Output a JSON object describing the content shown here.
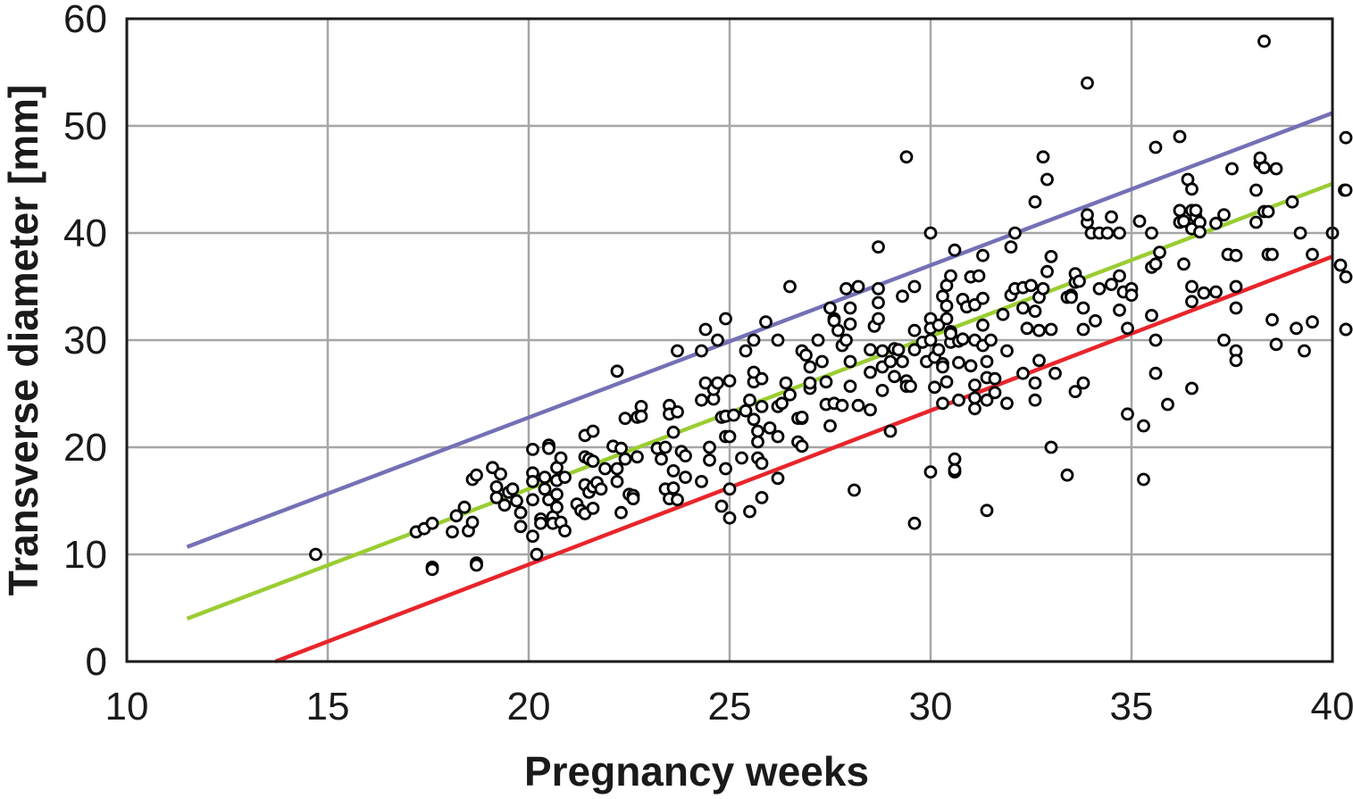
{
  "chart_data": {
    "type": "scatter",
    "title": "",
    "xlabel": "Pregnancy weeks",
    "ylabel": "Transverse diameter [mm]",
    "xlim": [
      10,
      40
    ],
    "ylim": [
      0,
      60
    ],
    "xticks": [
      10,
      15,
      20,
      25,
      30,
      35,
      40
    ],
    "yticks": [
      0,
      10,
      20,
      30,
      40,
      50,
      60
    ],
    "grid": true,
    "legend": "none",
    "lines": [
      {
        "color": "#7470b6",
        "x": [
          11.5,
          40
        ],
        "y": [
          10.7,
          51.2
        ]
      },
      {
        "color": "#9acd32",
        "x": [
          11.5,
          40
        ],
        "y": [
          4.0,
          44.6
        ]
      },
      {
        "color": "#e8252b",
        "x": [
          13.7,
          40
        ],
        "y": [
          0,
          37.8
        ]
      }
    ],
    "points": [
      [
        14.7,
        10
      ],
      [
        17.2,
        12.1
      ],
      [
        17.4,
        12.4
      ],
      [
        17.6,
        12.9
      ],
      [
        17.6,
        8.8
      ],
      [
        17.6,
        8.6
      ],
      [
        18.1,
        12.1
      ],
      [
        18.2,
        13.6
      ],
      [
        18.4,
        14.4
      ],
      [
        18.5,
        12.2
      ],
      [
        18.6,
        13
      ],
      [
        18.6,
        17
      ],
      [
        18.7,
        17.4
      ],
      [
        18.7,
        9.2
      ],
      [
        18.7,
        9
      ],
      [
        19.1,
        18.1
      ],
      [
        19.2,
        15.3
      ],
      [
        19.2,
        16.3
      ],
      [
        19.3,
        17.5
      ],
      [
        19.4,
        14.6
      ],
      [
        19.5,
        15.8
      ],
      [
        19.6,
        16.1
      ],
      [
        19.7,
        15
      ],
      [
        19.8,
        13.9
      ],
      [
        19.8,
        12.6
      ],
      [
        20.1,
        19.8
      ],
      [
        20.1,
        17.6
      ],
      [
        20.1,
        16.8
      ],
      [
        20.1,
        15.1
      ],
      [
        20.1,
        11.7
      ],
      [
        20.2,
        10
      ],
      [
        20.3,
        13.3
      ],
      [
        20.3,
        12.9
      ],
      [
        20.4,
        17.2
      ],
      [
        20.4,
        16.1
      ],
      [
        20.5,
        20.2
      ],
      [
        20.5,
        19.9
      ],
      [
        20.5,
        15.1
      ],
      [
        20.6,
        13.5
      ],
      [
        20.6,
        12.9
      ],
      [
        20.7,
        18.1
      ],
      [
        20.7,
        16.9
      ],
      [
        20.7,
        15.6
      ],
      [
        20.7,
        14.4
      ],
      [
        20.8,
        19
      ],
      [
        20.8,
        13
      ],
      [
        20.9,
        17.2
      ],
      [
        20.9,
        12.2
      ],
      [
        21.2,
        14.7
      ],
      [
        21.3,
        14.1
      ],
      [
        21.4,
        21.1
      ],
      [
        21.4,
        19.1
      ],
      [
        21.4,
        16.5
      ],
      [
        21.4,
        13.8
      ],
      [
        21.5,
        18.9
      ],
      [
        21.5,
        15.8
      ],
      [
        21.6,
        21.5
      ],
      [
        21.6,
        18.7
      ],
      [
        21.6,
        16.3
      ],
      [
        21.6,
        14.3
      ],
      [
        21.7,
        16.7
      ],
      [
        21.8,
        16.1
      ],
      [
        21.9,
        18
      ],
      [
        22.1,
        20.1
      ],
      [
        22.2,
        27.1
      ],
      [
        22.2,
        18
      ],
      [
        22.2,
        16.8
      ],
      [
        22.3,
        19.9
      ],
      [
        22.3,
        13.9
      ],
      [
        22.4,
        22.7
      ],
      [
        22.4,
        18.9
      ],
      [
        22.5,
        15.6
      ],
      [
        22.6,
        15.5
      ],
      [
        22.6,
        15.2
      ],
      [
        22.7,
        22.8
      ],
      [
        22.7,
        19.1
      ],
      [
        22.8,
        23.8
      ],
      [
        22.8,
        22.9
      ],
      [
        23.2,
        19.9
      ],
      [
        23.3,
        18.9
      ],
      [
        23.4,
        20
      ],
      [
        23.4,
        16.1
      ],
      [
        23.5,
        23.9
      ],
      [
        23.5,
        23.1
      ],
      [
        23.5,
        15.2
      ],
      [
        23.6,
        21.4
      ],
      [
        23.6,
        17.8
      ],
      [
        23.6,
        16.2
      ],
      [
        23.7,
        29
      ],
      [
        23.7,
        23.3
      ],
      [
        23.7,
        15.1
      ],
      [
        23.8,
        19.6
      ],
      [
        23.9,
        19.2
      ],
      [
        23.9,
        17.2
      ],
      [
        24.3,
        16.8
      ],
      [
        24.3,
        24.4
      ],
      [
        24.3,
        29
      ],
      [
        24.4,
        31
      ],
      [
        24.4,
        26
      ],
      [
        24.5,
        18.8
      ],
      [
        24.5,
        20
      ],
      [
        24.6,
        24.5
      ],
      [
        24.6,
        25.4
      ],
      [
        24.7,
        30
      ],
      [
        24.7,
        26
      ],
      [
        24.8,
        14.5
      ],
      [
        24.8,
        22.8
      ],
      [
        24.9,
        18
      ],
      [
        24.9,
        21
      ],
      [
        24.9,
        32
      ],
      [
        24.9,
        22.9
      ],
      [
        25,
        16.1
      ],
      [
        25,
        13.4
      ],
      [
        25,
        21
      ],
      [
        25,
        26.2
      ],
      [
        25.1,
        23
      ],
      [
        25.3,
        19
      ],
      [
        25.4,
        29
      ],
      [
        25.4,
        23.4
      ],
      [
        25.5,
        14
      ],
      [
        25.5,
        24.4
      ],
      [
        25.6,
        30
      ],
      [
        25.6,
        22.6
      ],
      [
        25.6,
        26.1
      ],
      [
        25.6,
        27
      ],
      [
        25.7,
        21.5
      ],
      [
        25.7,
        20.5
      ],
      [
        25.7,
        19
      ],
      [
        25.8,
        15.3
      ],
      [
        25.8,
        18.5
      ],
      [
        25.8,
        23.8
      ],
      [
        25.8,
        26.4
      ],
      [
        25.9,
        31.7
      ],
      [
        26,
        21.8
      ],
      [
        26.2,
        17.1
      ],
      [
        26.2,
        21
      ],
      [
        26.2,
        23.8
      ],
      [
        26.2,
        30
      ],
      [
        26.3,
        24.1
      ],
      [
        26.4,
        26
      ],
      [
        26.5,
        24.9
      ],
      [
        26.5,
        35
      ],
      [
        26.7,
        20.5
      ],
      [
        26.7,
        22.7
      ],
      [
        26.8,
        22.7
      ],
      [
        26.8,
        20.1
      ],
      [
        26.8,
        22.8
      ],
      [
        26.8,
        29
      ],
      [
        26.9,
        28.6
      ],
      [
        27,
        25.5
      ],
      [
        27,
        26
      ],
      [
        27,
        27.5
      ],
      [
        27.2,
        30
      ],
      [
        27.3,
        28
      ],
      [
        27.4,
        26.1
      ],
      [
        27.4,
        24
      ],
      [
        27.5,
        33
      ],
      [
        27.5,
        22
      ],
      [
        27.6,
        24.1
      ],
      [
        27.6,
        32
      ],
      [
        27.6,
        31.8
      ],
      [
        27.7,
        30.9
      ],
      [
        27.8,
        23.9
      ],
      [
        27.8,
        29.5
      ],
      [
        27.9,
        34.8
      ],
      [
        27.9,
        30
      ],
      [
        28,
        33
      ],
      [
        28,
        25.7
      ],
      [
        28,
        31.5
      ],
      [
        28,
        28
      ],
      [
        28.1,
        16
      ],
      [
        28.2,
        35
      ],
      [
        28.2,
        23.9
      ],
      [
        28.5,
        23.5
      ],
      [
        28.5,
        27
      ],
      [
        28.5,
        29.1
      ],
      [
        28.6,
        31.3
      ],
      [
        28.7,
        32
      ],
      [
        28.7,
        38.7
      ],
      [
        28.7,
        33.5
      ],
      [
        28.7,
        34.8
      ],
      [
        28.8,
        25.3
      ],
      [
        28.8,
        27.5
      ],
      [
        28.8,
        29
      ],
      [
        29,
        21.5
      ],
      [
        29,
        28
      ],
      [
        29.1,
        26.6
      ],
      [
        29.1,
        29.2
      ],
      [
        29.2,
        29.1
      ],
      [
        29.3,
        34.1
      ],
      [
        29.3,
        28
      ],
      [
        29.4,
        26.2
      ],
      [
        29.4,
        47.1
      ],
      [
        29.4,
        25.7
      ],
      [
        29.5,
        25.7
      ],
      [
        29.6,
        29.1
      ],
      [
        29.6,
        30.9
      ],
      [
        29.6,
        35
      ],
      [
        29.6,
        12.9
      ],
      [
        29.8,
        29.8
      ],
      [
        29.9,
        28
      ],
      [
        30,
        32
      ],
      [
        30,
        30
      ],
      [
        30,
        40
      ],
      [
        30,
        17.7
      ],
      [
        30,
        31.1
      ],
      [
        30.1,
        25.6
      ],
      [
        30.1,
        28.4
      ],
      [
        30.2,
        29.1
      ],
      [
        30.2,
        31.4
      ],
      [
        30.3,
        27.8
      ],
      [
        30.3,
        24.1
      ],
      [
        30.3,
        34.1
      ],
      [
        30.3,
        27.5
      ],
      [
        30.4,
        32
      ],
      [
        30.4,
        35.1
      ],
      [
        30.4,
        33.2
      ],
      [
        30.4,
        26.1
      ],
      [
        30.5,
        36
      ],
      [
        30.5,
        30.8
      ],
      [
        30.5,
        29.8
      ],
      [
        30.5,
        30.6
      ],
      [
        30.6,
        18.9
      ],
      [
        30.6,
        17.7
      ],
      [
        30.6,
        38.4
      ],
      [
        30.6,
        17.9
      ],
      [
        30.7,
        29.9
      ],
      [
        30.7,
        24.4
      ],
      [
        30.7,
        27.9
      ],
      [
        30.8,
        33.8
      ],
      [
        30.8,
        30.1
      ],
      [
        30.9,
        33.1
      ],
      [
        31,
        35.9
      ],
      [
        31,
        27.6
      ],
      [
        31.1,
        25.8
      ],
      [
        31.1,
        30
      ],
      [
        31.1,
        24.6
      ],
      [
        31.1,
        33.3
      ],
      [
        31.1,
        23.6
      ],
      [
        31.2,
        36
      ],
      [
        31.3,
        37.9
      ],
      [
        31.3,
        31.4
      ],
      [
        31.3,
        33.9
      ],
      [
        31.3,
        29.5
      ],
      [
        31.4,
        26.5
      ],
      [
        31.4,
        28
      ],
      [
        31.4,
        14.1
      ],
      [
        31.4,
        24.4
      ],
      [
        31.5,
        30
      ],
      [
        31.6,
        25.1
      ],
      [
        31.6,
        26.4
      ],
      [
        31.8,
        32.4
      ],
      [
        31.9,
        24.1
      ],
      [
        31.9,
        29
      ],
      [
        32,
        38.7
      ],
      [
        32,
        34.2
      ],
      [
        32.1,
        40
      ],
      [
        32.1,
        34.8
      ],
      [
        32.3,
        26.9
      ],
      [
        32.3,
        34.9
      ],
      [
        32.3,
        33
      ],
      [
        32.4,
        31.1
      ],
      [
        32.5,
        35.1
      ],
      [
        32.6,
        26
      ],
      [
        32.6,
        24.4
      ],
      [
        32.6,
        42.9
      ],
      [
        32.6,
        32.7
      ],
      [
        32.7,
        34
      ],
      [
        32.7,
        28.1
      ],
      [
        32.7,
        30.9
      ],
      [
        32.8,
        34.8
      ],
      [
        32.8,
        47.1
      ],
      [
        32.9,
        36.4
      ],
      [
        32.9,
        45
      ],
      [
        33,
        37.8
      ],
      [
        33,
        20
      ],
      [
        33,
        31
      ],
      [
        33.1,
        26.9
      ],
      [
        33.4,
        34
      ],
      [
        33.4,
        17.4
      ],
      [
        33.5,
        34.2
      ],
      [
        33.5,
        34
      ],
      [
        33.6,
        35.4
      ],
      [
        33.6,
        36.2
      ],
      [
        33.6,
        25.2
      ],
      [
        33.7,
        35.5
      ],
      [
        33.8,
        26
      ],
      [
        33.8,
        31
      ],
      [
        33.8,
        33
      ],
      [
        33.9,
        54
      ],
      [
        33.9,
        41
      ],
      [
        33.9,
        41.7
      ],
      [
        34,
        40
      ],
      [
        34.1,
        31.8
      ],
      [
        34.2,
        34.8
      ],
      [
        34.2,
        40
      ],
      [
        34.4,
        40
      ],
      [
        34.5,
        35.2
      ],
      [
        34.5,
        41.5
      ],
      [
        34.7,
        36
      ],
      [
        34.7,
        40
      ],
      [
        34.7,
        32.8
      ],
      [
        34.8,
        34.5
      ],
      [
        34.9,
        31.1
      ],
      [
        34.9,
        23.1
      ],
      [
        35,
        34.8
      ],
      [
        35,
        34.2
      ],
      [
        35.2,
        41.1
      ],
      [
        35.3,
        22
      ],
      [
        35.3,
        17
      ],
      [
        35.5,
        40
      ],
      [
        35.5,
        32.3
      ],
      [
        35.5,
        36.8
      ],
      [
        35.6,
        48
      ],
      [
        35.6,
        30
      ],
      [
        35.6,
        26.9
      ],
      [
        35.6,
        37.1
      ],
      [
        35.7,
        38.2
      ],
      [
        35.9,
        24
      ],
      [
        36.2,
        49
      ],
      [
        36.2,
        42.1
      ],
      [
        36.2,
        41
      ],
      [
        36.3,
        37.1
      ],
      [
        36.3,
        41.1
      ],
      [
        36.4,
        45
      ],
      [
        36.5,
        44.1
      ],
      [
        36.5,
        42.1
      ],
      [
        36.5,
        40.4
      ],
      [
        36.5,
        35
      ],
      [
        36.5,
        33.6
      ],
      [
        36.5,
        25.5
      ],
      [
        36.6,
        41.5
      ],
      [
        36.6,
        42.1
      ],
      [
        36.7,
        41
      ],
      [
        36.7,
        40.1
      ],
      [
        36.8,
        34.4
      ],
      [
        37.1,
        40.9
      ],
      [
        37.1,
        34.5
      ],
      [
        37.3,
        41.7
      ],
      [
        37.3,
        30
      ],
      [
        37.4,
        38
      ],
      [
        37.5,
        46
      ],
      [
        37.6,
        29
      ],
      [
        37.6,
        28.1
      ],
      [
        37.6,
        33
      ],
      [
        37.6,
        35
      ],
      [
        37.6,
        37.9
      ],
      [
        38.1,
        44
      ],
      [
        38.1,
        41
      ],
      [
        38.2,
        46.5
      ],
      [
        38.2,
        47
      ],
      [
        38.3,
        46.1
      ],
      [
        38.3,
        42
      ],
      [
        38.3,
        57.9
      ],
      [
        38.4,
        42
      ],
      [
        38.4,
        38
      ],
      [
        38.5,
        31.9
      ],
      [
        38.5,
        38
      ],
      [
        38.6,
        46
      ],
      [
        38.6,
        29.6
      ],
      [
        39,
        42.9
      ],
      [
        39.1,
        31.1
      ],
      [
        39.2,
        40
      ],
      [
        39.3,
        29
      ],
      [
        39.5,
        31.7
      ],
      [
        39.5,
        38
      ],
      [
        40,
        40
      ],
      [
        40.2,
        37
      ],
      [
        40.3,
        44
      ],
      [
        40.6,
        31
      ],
      [
        41.1,
        35.9
      ],
      [
        41.3,
        48.9
      ],
      [
        41.5,
        31
      ],
      [
        41.6,
        44
      ]
    ]
  }
}
